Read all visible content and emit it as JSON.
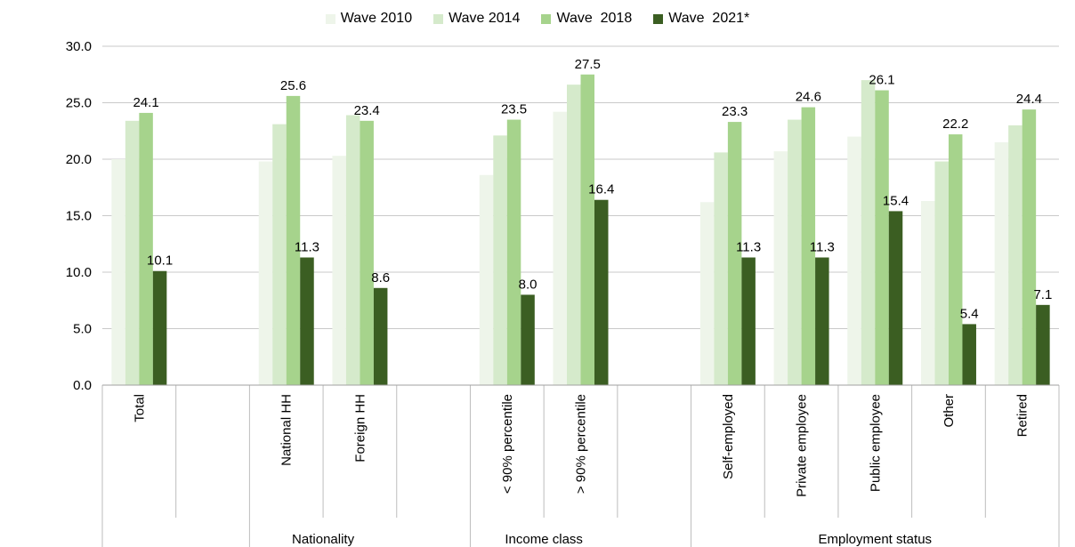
{
  "chart_data": {
    "type": "bar",
    "yticks": [
      "0.0",
      "5.0",
      "10.0",
      "15.0",
      "20.0",
      "25.0",
      "30.0"
    ],
    "ylim": [
      0,
      30
    ],
    "grid": true,
    "legend_position": "top-center",
    "categories": [
      "Total",
      "",
      "National HH",
      "Foreign HH",
      "",
      "< 90% percentile",
      "> 90% percentile",
      "",
      "Self-employed",
      "Private employee",
      "Public employee",
      "Other",
      "Retired"
    ],
    "groups": [
      {
        "label": "",
        "categories": [
          "Total",
          ""
        ]
      },
      {
        "label": "Nationality",
        "categories": [
          "National HH",
          "Foreign HH",
          ""
        ]
      },
      {
        "label": "Income class",
        "categories": [
          "< 90% percentile",
          "> 90% percentile",
          ""
        ]
      },
      {
        "label": "Employment status",
        "categories": [
          "Self-employed",
          "Private employee",
          "Public employee",
          "Other",
          "Retired"
        ]
      }
    ],
    "series": [
      {
        "name": "Wave 2010",
        "color": "#eef5ea",
        "values": [
          20.0,
          null,
          19.8,
          20.3,
          null,
          18.6,
          24.2,
          null,
          16.2,
          20.7,
          22.0,
          16.3,
          21.5
        ],
        "labels": [
          null,
          null,
          null,
          null,
          null,
          null,
          null,
          null,
          null,
          null,
          null,
          null,
          null
        ]
      },
      {
        "name": "Wave 2014",
        "color": "#d5eacb",
        "values": [
          23.4,
          null,
          23.1,
          23.9,
          null,
          22.1,
          26.6,
          null,
          20.6,
          23.5,
          27.0,
          19.8,
          23.0
        ],
        "labels": [
          null,
          null,
          null,
          null,
          null,
          null,
          null,
          null,
          null,
          null,
          null,
          null,
          null
        ]
      },
      {
        "name": "Wave  2018",
        "color": "#a6d38c",
        "values": [
          24.1,
          null,
          25.6,
          23.4,
          null,
          23.5,
          27.5,
          null,
          23.3,
          24.6,
          26.1,
          22.2,
          24.4
        ],
        "labels": [
          "24.1",
          null,
          "25.6",
          "23.4",
          null,
          "23.5",
          "27.5",
          null,
          "23.3",
          "24.6",
          "26.1",
          "22.2",
          "24.4"
        ]
      },
      {
        "name": "Wave  2021*",
        "color": "#3b5e22",
        "values": [
          10.1,
          null,
          11.3,
          8.6,
          null,
          8.0,
          16.4,
          null,
          11.3,
          11.3,
          15.4,
          5.4,
          7.1
        ],
        "labels": [
          "10.1",
          null,
          "11.3",
          "8.6",
          null,
          "8.0",
          "16.4",
          null,
          "11.3",
          "11.3",
          "15.4",
          "5.4",
          "7.1"
        ]
      }
    ]
  }
}
